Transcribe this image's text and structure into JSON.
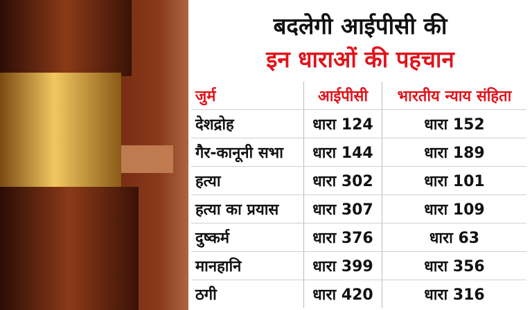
{
  "title": {
    "line1": "बदलेगी आईपीसी की",
    "line2": "इन धाराओं की पहचान"
  },
  "colors": {
    "accent": "#e0141b",
    "text": "#111111",
    "gavel": "#6b2610",
    "gold": "#d9a441"
  },
  "table": {
    "headers": [
      "जुर्म",
      "आईपीसी",
      "भारतीय न्याय संहिता"
    ],
    "rows": [
      [
        "देशद्रोह",
        "धारा 124",
        "धारा 152"
      ],
      [
        "गैर-कानूनी सभा",
        "धारा 144",
        "धारा 189"
      ],
      [
        "हत्या",
        "धारा 302",
        "धारा 101"
      ],
      [
        "हत्या का प्रयास",
        "धारा 307",
        "धारा 109"
      ],
      [
        "दुष्कर्म",
        "धारा 376",
        "धारा 63"
      ],
      [
        "मानहानि",
        "धारा 399",
        "धारा 356"
      ],
      [
        "ठगी",
        "धारा 420",
        "धारा 316"
      ]
    ]
  }
}
